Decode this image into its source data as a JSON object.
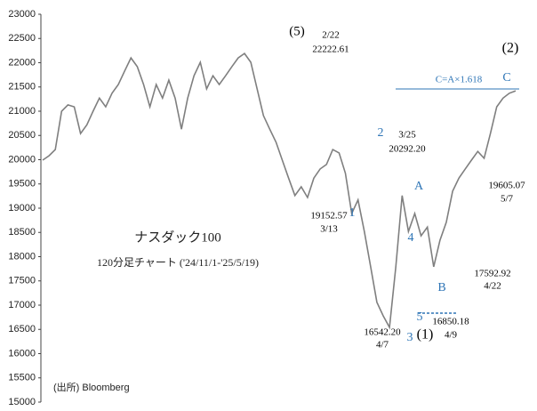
{
  "chart_data": {
    "type": "line",
    "title": "ナスダック100",
    "subtitle": "120分足チャート ('24/11/1-'25/5/19)",
    "source": "(出所) Bloomberg",
    "color": "#7f7f7f",
    "values": [
      19990,
      20080,
      20210,
      21000,
      21130,
      21090,
      20540,
      20720,
      21000,
      21270,
      21090,
      21370,
      21550,
      21830,
      22100,
      21920,
      21550,
      21090,
      21550,
      21270,
      21640,
      21270,
      20630,
      21270,
      21730,
      22010,
      21460,
      21730,
      21550,
      21730,
      21920,
      22100,
      22190,
      22010,
      21460,
      20910,
      20630,
      20360,
      19990,
      19620,
      19260,
      19440,
      19220,
      19620,
      19810,
      19900,
      20210,
      20140,
      19720,
      18890,
      19170,
      18520,
      17790,
      17060,
      16780,
      16542,
      17790,
      19260,
      18520,
      18890,
      18430,
      18610,
      17790,
      18340,
      18710,
      19350,
      19620,
      19810,
      19990,
      20170,
      20030,
      20540,
      21090,
      21270,
      21370,
      21420
    ],
    "ylim": [
      15000,
      23000
    ],
    "yticks": [
      15000,
      15500,
      16000,
      16500,
      17000,
      17500,
      18000,
      18500,
      19000,
      19500,
      20000,
      20500,
      21000,
      21500,
      22000,
      22500,
      23000
    ],
    "annotations": [
      {
        "text": "(5)",
        "color": "#000000"
      },
      {
        "text": "2/22",
        "color": "#000000"
      },
      {
        "text": "22222.61",
        "color": "#000000"
      },
      {
        "text": "C=A×1.618",
        "color": "#2e75b6"
      },
      {
        "text": "C",
        "color": "#2e75b6"
      },
      {
        "text": "(2)",
        "color": "#000000"
      },
      {
        "text": "2",
        "color": "#2e75b6"
      },
      {
        "text": "3/25",
        "color": "#000000"
      },
      {
        "text": "20292.20",
        "color": "#000000"
      },
      {
        "text": "19152.57",
        "color": "#000000"
      },
      {
        "text": "3/13",
        "color": "#000000"
      },
      {
        "text": "1",
        "color": "#2e75b6"
      },
      {
        "text": "A",
        "color": "#2e75b6"
      },
      {
        "text": "4",
        "color": "#2e75b6"
      },
      {
        "text": "B",
        "color": "#2e75b6"
      },
      {
        "text": "17592.92",
        "color": "#000000"
      },
      {
        "text": "4/22",
        "color": "#000000"
      },
      {
        "text": "19605.07",
        "color": "#000000"
      },
      {
        "text": "5/7",
        "color": "#000000"
      },
      {
        "text": "16850.18",
        "color": "#000000"
      },
      {
        "text": "4/9",
        "color": "#000000"
      },
      {
        "text": "5",
        "color": "#2e75b6"
      },
      {
        "text": "16542.20",
        "color": "#000000"
      },
      {
        "text": "4/7",
        "color": "#000000"
      },
      {
        "text": "3",
        "color": "#2e75b6"
      },
      {
        "text": "(1)",
        "color": "#000000"
      }
    ]
  }
}
